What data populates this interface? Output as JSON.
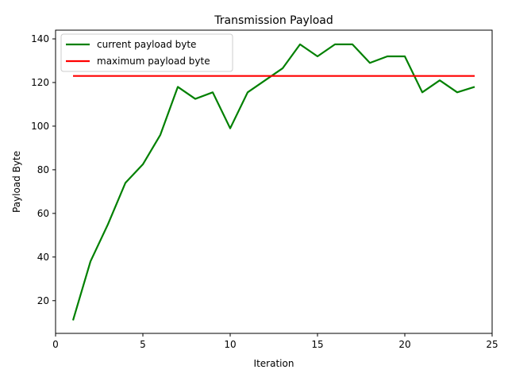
{
  "chart_data": {
    "type": "line",
    "title": "Transmission Payload",
    "xlabel": "Iteration",
    "ylabel": "Payload Byte",
    "xlim": [
      0,
      25
    ],
    "ylim": [
      5,
      144
    ],
    "xticks": [
      0,
      5,
      10,
      15,
      20,
      25
    ],
    "yticks": [
      20,
      40,
      60,
      80,
      100,
      120,
      140
    ],
    "grid": false,
    "legend_position": "top-left",
    "x": [
      1,
      2,
      3,
      4,
      5,
      6,
      7,
      8,
      9,
      10,
      11,
      12,
      13,
      14,
      15,
      16,
      17,
      18,
      19,
      20,
      21,
      22,
      23,
      24
    ],
    "series": [
      {
        "name": "current payload byte",
        "color": "#008000",
        "values": [
          11,
          38,
          55,
          74,
          82.5,
          96,
          118,
          112.5,
          115.5,
          99,
          115.5,
          121,
          126.5,
          137.5,
          132,
          137.5,
          137.5,
          129,
          132,
          132,
          115.5,
          121,
          115.5,
          118
        ]
      },
      {
        "name": "maximum payload byte",
        "color": "#ff0000",
        "values": [
          123,
          123,
          123,
          123,
          123,
          123,
          123,
          123,
          123,
          123,
          123,
          123,
          123,
          123,
          123,
          123,
          123,
          123,
          123,
          123,
          123,
          123,
          123,
          123
        ]
      }
    ]
  }
}
